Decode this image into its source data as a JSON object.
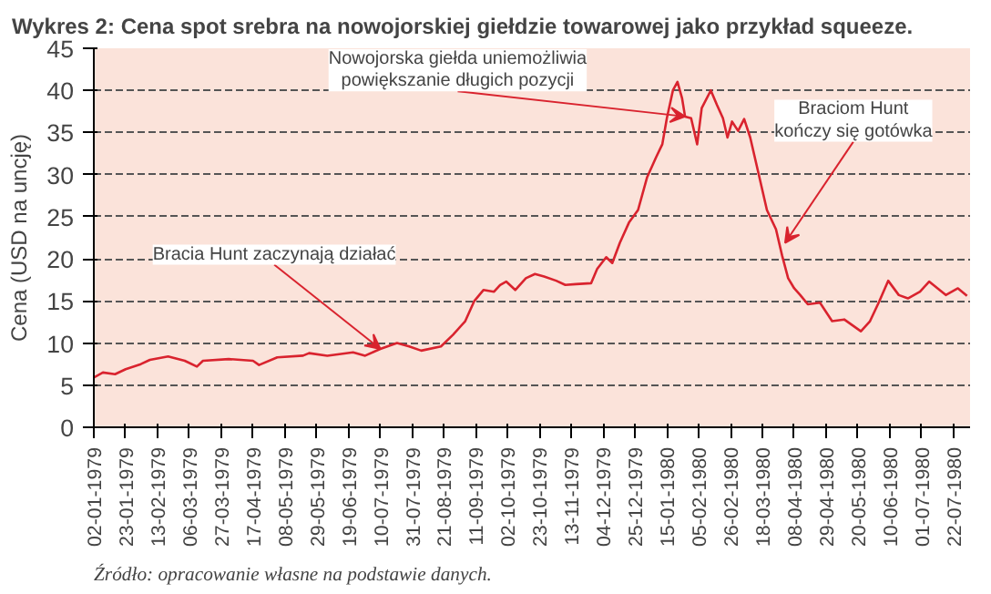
{
  "chart_data": {
    "type": "line",
    "title": "Wykres 2: Cena spot srebra na nowojorskiej giełdzie towarowej jako przykład squeeze.",
    "ylabel": "Cena (USD na uncję)",
    "x": [
      "1979-01-02",
      "1979-01-08",
      "1979-01-16",
      "1979-01-23",
      "1979-02-02",
      "1979-02-08",
      "1979-02-20",
      "1979-03-03",
      "1979-03-11",
      "1979-03-15",
      "1979-04-01",
      "1979-04-17",
      "1979-04-21",
      "1979-05-03",
      "1979-05-20",
      "1979-05-24",
      "1979-06-05",
      "1979-06-22",
      "1979-06-30",
      "1979-07-10",
      "1979-07-21",
      "1979-07-29",
      "1979-08-06",
      "1979-08-19",
      "1979-08-27",
      "1979-09-04",
      "1979-09-10",
      "1979-09-16",
      "1979-09-23",
      "1979-09-27",
      "1979-10-01",
      "1979-10-07",
      "1979-10-14",
      "1979-10-20",
      "1979-10-26",
      "1979-11-03",
      "1979-11-09",
      "1979-11-16",
      "1979-11-26",
      "1979-11-30",
      "1979-12-06",
      "1979-12-10",
      "1979-12-15",
      "1979-12-21",
      "1979-12-27",
      "1980-01-02",
      "1980-01-08",
      "1980-01-12",
      "1980-01-15",
      "1980-01-19",
      "1980-01-22",
      "1980-01-25",
      "1980-01-27",
      "1980-01-31",
      "1980-02-04",
      "1980-02-07",
      "1980-02-13",
      "1980-02-17",
      "1980-02-21",
      "1980-02-24",
      "1980-02-27",
      "1980-03-02",
      "1980-03-06",
      "1980-03-10",
      "1980-03-15",
      "1980-03-21",
      "1980-03-27",
      "1980-03-31",
      "1980-04-04",
      "1980-04-08",
      "1980-04-12",
      "1980-04-17",
      "1980-04-25",
      "1980-05-03",
      "1980-05-11",
      "1980-05-22",
      "1980-05-28",
      "1980-06-03",
      "1980-06-09",
      "1980-06-16",
      "1980-06-22",
      "1980-06-30",
      "1980-07-06",
      "1980-07-17",
      "1980-07-25",
      "1980-07-31"
    ],
    "series": [
      {
        "color": "#d9232e",
        "values": [
          5.9,
          6.5,
          6.3,
          6.9,
          7.5,
          8.0,
          8.4,
          7.9,
          7.2,
          7.9,
          8.1,
          7.9,
          7.4,
          8.3,
          8.5,
          8.8,
          8.5,
          8.9,
          8.5,
          9.3,
          10.0,
          9.6,
          9.1,
          9.6,
          11.0,
          12.6,
          15.0,
          16.3,
          16.1,
          16.9,
          17.3,
          16.3,
          17.7,
          18.2,
          17.9,
          17.4,
          16.9,
          17.0,
          17.1,
          18.8,
          20.2,
          19.5,
          21.9,
          24.3,
          25.8,
          29.7,
          32.1,
          33.6,
          36.7,
          40.0,
          41.0,
          39.1,
          36.9,
          36.7,
          33.6,
          37.9,
          40.0,
          38.3,
          36.7,
          34.4,
          36.3,
          35.2,
          36.6,
          34.4,
          30.5,
          25.8,
          23.5,
          20.4,
          17.7,
          16.5,
          15.7,
          14.6,
          14.8,
          12.6,
          12.8,
          11.4,
          12.6,
          14.9,
          17.4,
          15.7,
          15.3,
          16.1,
          17.3,
          15.7,
          16.5,
          15.6
        ]
      }
    ],
    "xlim": [
      "1979-01-02",
      "1980-08-02"
    ],
    "ylim": [
      0,
      45
    ],
    "yticks": [
      0,
      5,
      10,
      15,
      20,
      25,
      30,
      35,
      40,
      45
    ],
    "xticks": [
      {
        "value": "1979-01-02",
        "label": "02-01-1979"
      },
      {
        "value": "1979-01-23",
        "label": "23-01-1979"
      },
      {
        "value": "1979-02-13",
        "label": "13-02-1979"
      },
      {
        "value": "1979-03-06",
        "label": "06-03-1979"
      },
      {
        "value": "1979-03-27",
        "label": "27-03-1979"
      },
      {
        "value": "1979-04-17",
        "label": "17-04-1979"
      },
      {
        "value": "1979-05-08",
        "label": "08-05-1979"
      },
      {
        "value": "1979-05-29",
        "label": "29-05-1979"
      },
      {
        "value": "1979-06-19",
        "label": "19-06-1979"
      },
      {
        "value": "1979-07-10",
        "label": "10-07-1979"
      },
      {
        "value": "1979-07-31",
        "label": "31-07-1979"
      },
      {
        "value": "1979-08-21",
        "label": "21-08-1979"
      },
      {
        "value": "1979-09-11",
        "label": "11-09-1979"
      },
      {
        "value": "1979-10-02",
        "label": "02-10-1979"
      },
      {
        "value": "1979-10-23",
        "label": "23-10-1979"
      },
      {
        "value": "1979-11-13",
        "label": "13-11-1979"
      },
      {
        "value": "1979-12-04",
        "label": "04-12-1979"
      },
      {
        "value": "1979-12-25",
        "label": "25-12-1979"
      },
      {
        "value": "1980-01-15",
        "label": "15-01-1980"
      },
      {
        "value": "1980-02-05",
        "label": "05-02-1980"
      },
      {
        "value": "1980-02-26",
        "label": "26-02-1980"
      },
      {
        "value": "1980-03-18",
        "label": "18-03-1980"
      },
      {
        "value": "1980-04-08",
        "label": "08-04-1980"
      },
      {
        "value": "1980-04-29",
        "label": "29-04-1980"
      },
      {
        "value": "1980-05-20",
        "label": "20-05-1980"
      },
      {
        "value": "1980-06-10",
        "label": "10-06-1980"
      },
      {
        "value": "1980-07-01",
        "label": "01-07-1980"
      },
      {
        "value": "1980-07-22",
        "label": "22-07-1980"
      }
    ],
    "grid": "y",
    "annotations": [
      {
        "text": "Bracia Hunt zaczynają działać",
        "x": "1979-07-10",
        "y": 9.3
      },
      {
        "text": "Nowojorska giełda uniemożliwia\npowiększanie długich pozycji",
        "x": "1980-01-27",
        "y": 36.9
      },
      {
        "text": "Braciom Hunt\nkończy się gotówka",
        "x": "1980-04-02",
        "y": 21.9
      },
      "Źródło: opracowanie własne na podstawie danych."
    ]
  }
}
